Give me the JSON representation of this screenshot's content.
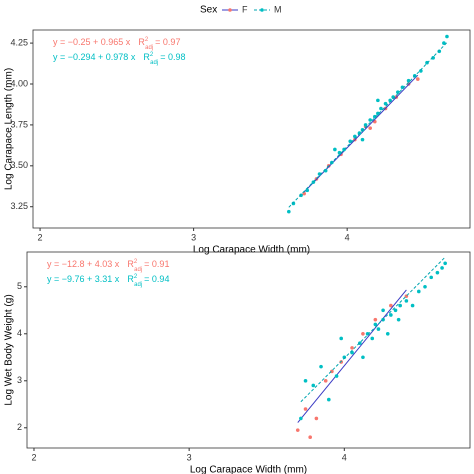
{
  "legend": {
    "title": "Sex",
    "items": [
      {
        "name": "F",
        "color": "#F8766D",
        "line_color": "#3B3BC4",
        "line_style": "solid"
      },
      {
        "name": "M",
        "color": "#00BFC4",
        "line_color": "#00A5B0",
        "line_style": "dashed"
      }
    ]
  },
  "chart_data": [
    {
      "type": "scatter",
      "x_label": "Log Carapace Width (mm)",
      "y_label": "Log Carapace Length (mm)",
      "xlim": [
        1.954,
        4.8
      ],
      "ylim": [
        3.12,
        4.33
      ],
      "xticks": [
        2,
        3,
        4
      ],
      "yticks": [
        3.25,
        {
          "value": 3.5,
          "label": "3.50"
        },
        3.75,
        {
          "value": 4.0,
          "label": "4.00"
        },
        4.25
      ],
      "annotations": [
        {
          "equation": "y = −0.25 + 0.965 x",
          "r": "R",
          "sup": "2",
          "sub": "adj",
          "r2": "= 0.97",
          "color": "#F8766D"
        },
        {
          "equation": "y = −0.294 + 0.978 x",
          "r": "R",
          "sup": "2",
          "sub": "adj",
          "r2": "= 0.98",
          "color": "#00BFC4"
        }
      ],
      "series": [
        {
          "color": "#F8766D",
          "line_color": "#3B3BC4",
          "line_style": "solid",
          "fit": {
            "intercept": -0.25,
            "slope": 0.965
          },
          "x": [
            3.72,
            3.8,
            3.88,
            3.96,
            4.05,
            4.12,
            4.18,
            4.25,
            4.32,
            4.4,
            4.46,
            4.15
          ],
          "values": [
            3.33,
            3.42,
            3.5,
            3.57,
            3.66,
            3.74,
            3.77,
            3.85,
            3.92,
            4.0,
            4.03,
            3.73
          ]
        },
        {
          "color": "#00BFC4",
          "line_color": "#00A5B0",
          "line_style": "dashed",
          "fit": {
            "intercept": -0.294,
            "slope": 0.978
          },
          "x": [
            3.62,
            3.65,
            3.7,
            3.74,
            3.78,
            3.82,
            3.86,
            3.9,
            3.95,
            3.98,
            4.02,
            4.05,
            4.08,
            4.1,
            4.12,
            4.15,
            4.18,
            4.2,
            4.22,
            4.25,
            4.28,
            4.3,
            4.33,
            4.36,
            4.4,
            4.44,
            4.48,
            4.52,
            4.56,
            4.6,
            4.63,
            4.65,
            4.1,
            4.2,
            3.92
          ],
          "values": [
            3.22,
            3.27,
            3.32,
            3.35,
            3.4,
            3.45,
            3.47,
            3.52,
            3.58,
            3.6,
            3.65,
            3.68,
            3.7,
            3.72,
            3.75,
            3.78,
            3.8,
            3.82,
            3.85,
            3.88,
            3.9,
            3.92,
            3.95,
            3.98,
            4.02,
            4.05,
            4.08,
            4.13,
            4.16,
            4.2,
            4.25,
            4.29,
            3.66,
            3.9,
            3.6
          ]
        }
      ]
    },
    {
      "type": "scatter",
      "x_label": "Log Carapace Width (mm)",
      "y_label": "Log Wet Body Weight (g)",
      "xlim": [
        1.955,
        4.81
      ],
      "ylim": [
        1.57,
        5.74
      ],
      "xticks": [
        2,
        3,
        4
      ],
      "yticks": [
        2,
        3,
        4,
        5
      ],
      "annotations": [
        {
          "equation": "y = −12.8 + 4.03 x",
          "r": "R",
          "sup": "2",
          "sub": "adj",
          "r2": "= 0.91",
          "color": "#F8766D"
        },
        {
          "equation": "y = −9.76 + 3.31 x",
          "r": "R",
          "sup": "2",
          "sub": "adj",
          "r2": "= 0.94",
          "color": "#00BFC4"
        }
      ],
      "series": [
        {
          "color": "#F8766D",
          "line_color": "#3B3BC4",
          "line_style": "solid",
          "fit": {
            "intercept": -12.8,
            "slope": 4.03
          },
          "x": [
            3.7,
            3.75,
            3.78,
            3.82,
            3.88,
            3.92,
            3.98,
            4.05,
            4.12,
            4.2,
            4.3,
            4.4
          ],
          "values": [
            1.95,
            2.4,
            1.8,
            2.2,
            3.0,
            3.2,
            3.4,
            3.7,
            4.0,
            4.3,
            4.6,
            4.8
          ]
        },
        {
          "color": "#00BFC4",
          "line_color": "#00A5B0",
          "line_style": "dashed",
          "fit": {
            "intercept": -9.76,
            "slope": 3.31
          },
          "x": [
            3.72,
            3.75,
            3.8,
            3.85,
            3.9,
            3.95,
            4.0,
            4.05,
            4.1,
            4.12,
            4.15,
            4.18,
            4.2,
            4.22,
            4.25,
            4.28,
            4.3,
            4.33,
            4.36,
            4.4,
            4.44,
            4.48,
            4.52,
            4.56,
            4.6,
            4.63,
            4.65,
            4.25,
            4.35,
            3.98
          ],
          "values": [
            2.2,
            3.0,
            2.9,
            3.3,
            2.6,
            3.1,
            3.5,
            3.6,
            3.8,
            3.5,
            4.0,
            3.9,
            4.2,
            4.1,
            4.3,
            4.0,
            4.4,
            4.5,
            4.6,
            4.7,
            4.6,
            4.9,
            5.0,
            5.2,
            5.3,
            5.4,
            5.5,
            4.5,
            4.3,
            3.9
          ]
        }
      ]
    }
  ]
}
